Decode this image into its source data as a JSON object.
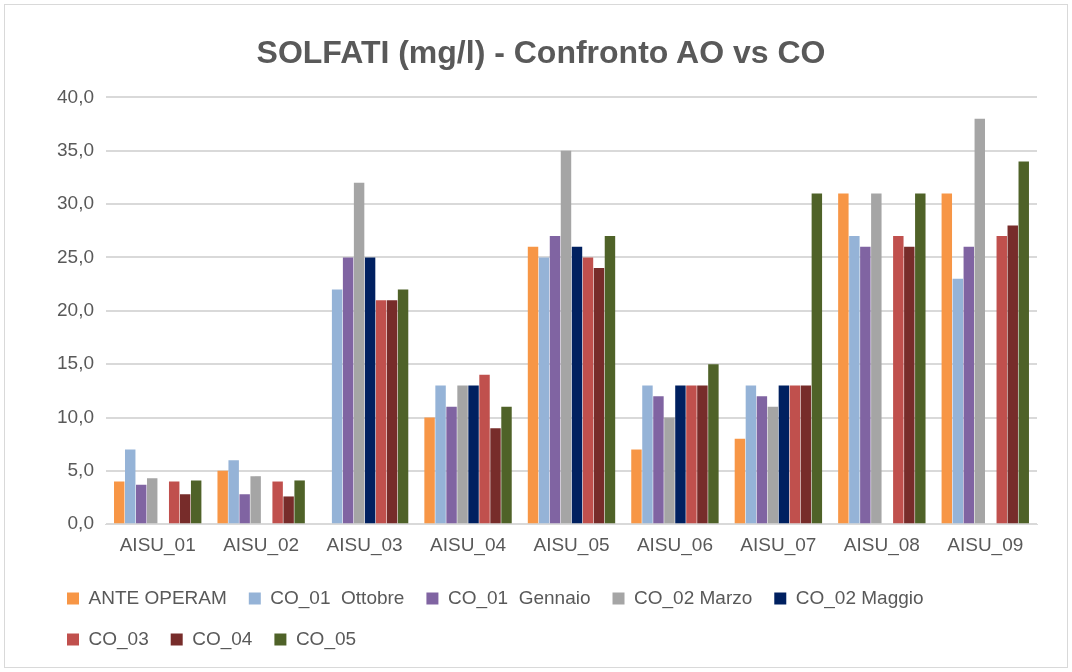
{
  "chart_data": {
    "type": "bar",
    "title": "SOLFATI (mg/l) - Confronto AO vs CO",
    "categories": [
      "AISU_01",
      "AISU_02",
      "AISU_03",
      "AISU_04",
      "AISU_05",
      "AISU_06",
      "AISU_07",
      "AISU_08",
      "AISU_09"
    ],
    "series": [
      {
        "name": "ANTE OPERAM",
        "color": "#f79646",
        "values": [
          4,
          5,
          0,
          10,
          26,
          7,
          8,
          31,
          31
        ]
      },
      {
        "name": "CO_01  Ottobre",
        "color": "#95b3d7",
        "values": [
          7,
          6,
          22,
          13,
          25,
          13,
          13,
          27,
          23
        ]
      },
      {
        "name": "CO_01  Gennaio",
        "color": "#8064a2",
        "values": [
          3.7,
          2.8,
          25,
          11,
          27,
          12,
          12,
          26,
          26
        ]
      },
      {
        "name": "CO_02 Marzo",
        "color": "#a5a5a5",
        "values": [
          4.3,
          4.5,
          32,
          13,
          35,
          10,
          11,
          31,
          38
        ]
      },
      {
        "name": "CO_02 Maggio",
        "color": "#002060",
        "values": [
          null,
          null,
          25,
          13,
          26,
          13,
          13,
          null,
          null
        ]
      },
      {
        "name": "CO_03",
        "color": "#c0504d",
        "values": [
          4,
          4,
          21,
          14,
          25,
          13,
          13,
          27,
          27
        ]
      },
      {
        "name": "CO_04",
        "color": "#772c2a",
        "values": [
          2.8,
          2.6,
          21,
          9,
          24,
          13,
          13,
          26,
          28
        ]
      },
      {
        "name": "CO_05",
        "color": "#4f6228",
        "values": [
          4.1,
          4.1,
          22,
          11,
          27,
          15,
          31,
          31,
          34
        ]
      }
    ],
    "ylim": [
      0,
      40
    ],
    "yticks": [
      {
        "value": 0,
        "label": "0,0"
      },
      {
        "value": 5,
        "label": "5,0"
      },
      {
        "value": 10,
        "label": "10,0"
      },
      {
        "value": 15,
        "label": "15,0"
      },
      {
        "value": 20,
        "label": "20,0"
      },
      {
        "value": 25,
        "label": "25,0"
      },
      {
        "value": 30,
        "label": "30,0"
      },
      {
        "value": 35,
        "label": "35,0"
      },
      {
        "value": 40,
        "label": "40,0"
      }
    ],
    "grid": "y",
    "legend": "bottom"
  }
}
